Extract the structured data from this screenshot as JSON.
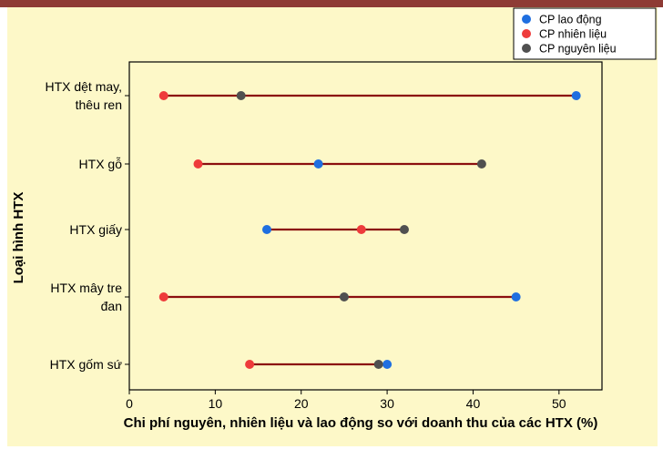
{
  "colors": {
    "page_bg": "#ffffff",
    "figure_bg": "#fdf8c8",
    "plot_bg": "#fdf8c8",
    "top_bar": "#8e3b35",
    "range_line": "#8b0f0f",
    "lao_dong": "#1f6fe0",
    "nhien_lieu": "#ee3b3b",
    "nguyen_lieu": "#505050"
  },
  "chart_data": {
    "type": "dumbbell",
    "title": "",
    "xlabel": "Chi phí nguyên, nhiên liệu và lao động so với doanh thu của các HTX (%)",
    "ylabel": "Loại hình HTX",
    "xlim": [
      0,
      55
    ],
    "xticks": [
      "0",
      "10",
      "20",
      "30",
      "40",
      "50"
    ],
    "xtick_values": [
      0,
      10,
      20,
      30,
      40,
      50
    ],
    "grid": false,
    "legend_position": "top-right",
    "categories": [
      [
        "HTX dệt may,",
        "thêu ren"
      ],
      [
        "HTX gỗ"
      ],
      [
        "HTX giấy"
      ],
      [
        "HTX mây tre",
        "đan"
      ],
      [
        "HTX gốm sứ"
      ]
    ],
    "series": [
      {
        "name": "CP lao động",
        "color_key": "lao_dong",
        "values": [
          52,
          22,
          16,
          45,
          30
        ]
      },
      {
        "name": "CP nhiên liệu",
        "color_key": "nhien_lieu",
        "values": [
          4,
          8,
          27,
          4,
          14
        ]
      },
      {
        "name": "CP nguyên liệu",
        "color_key": "nguyen_lieu",
        "values": [
          13,
          41,
          32,
          25,
          29
        ]
      }
    ]
  }
}
